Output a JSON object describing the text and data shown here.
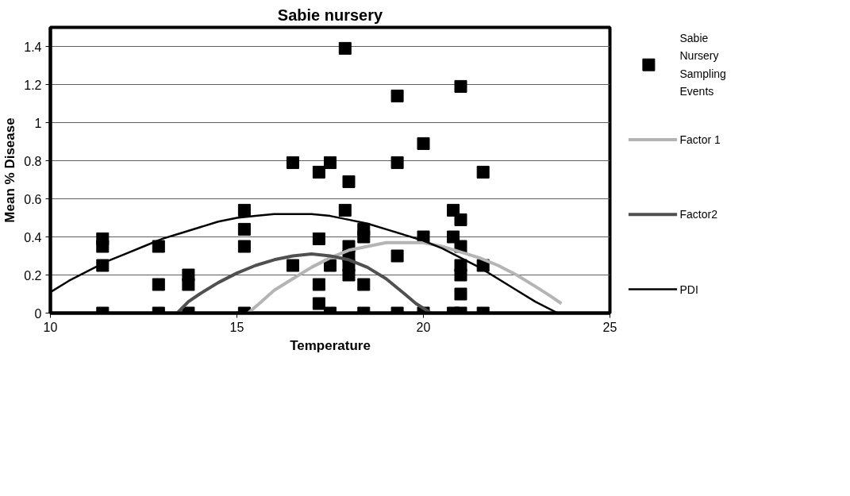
{
  "chart_data": {
    "type": "scatter",
    "title": "Sabie nursery",
    "xlabel": "Temperature",
    "ylabel": "Mean % Disease",
    "xlim": [
      10,
      25
    ],
    "ylim": [
      0,
      1.5
    ],
    "xticks": [
      10,
      15,
      20,
      25
    ],
    "yticks": [
      0,
      0.2,
      0.4,
      0.6,
      0.8,
      1,
      1.2,
      1.4
    ],
    "grid": "y",
    "legend": "right",
    "series": [
      {
        "name": "Sabie Nursery Sampling Events",
        "marker": "square",
        "color": "#000000",
        "x": [
          11.4,
          11.4,
          11.4,
          11.4,
          12.9,
          12.9,
          12.9,
          13.7,
          13.7,
          13.7,
          15.2,
          15.2,
          15.2,
          15.2,
          16.5,
          16.5,
          17.2,
          17.2,
          17.2,
          17.2,
          17.5,
          17.5,
          17.5,
          17.9,
          17.9,
          18.0,
          18.0,
          18.0,
          18.0,
          18.0,
          18.4,
          18.4,
          18.4,
          18.4,
          19.3,
          19.3,
          19.3,
          19.3,
          20.0,
          20.0,
          20.0,
          20.8,
          20.8,
          20.8,
          21.0,
          21.0,
          21.0,
          21.0,
          21.0,
          21.0,
          21.0,
          21.6,
          21.6,
          21.6
        ],
        "values": [
          0.39,
          0.35,
          0.25,
          0,
          0.35,
          0.15,
          0,
          0.2,
          0.15,
          0,
          0.54,
          0.44,
          0.35,
          0,
          0.79,
          0.25,
          0.74,
          0.39,
          0.15,
          0.05,
          0.79,
          0.25,
          0,
          1.39,
          0.54,
          0.69,
          0.35,
          0.3,
          0.25,
          0.2,
          0.44,
          0.4,
          0.15,
          0,
          1.14,
          0.79,
          0.3,
          0,
          0.89,
          0.4,
          0,
          0.54,
          0.4,
          0,
          1.19,
          0.49,
          0.35,
          0.25,
          0.2,
          0.1,
          0,
          0.74,
          0.25,
          0
        ]
      },
      {
        "name": "Factor 1",
        "type": "line",
        "marker": "none",
        "color": "#b4b4b4",
        "x": [
          15.3,
          15.6,
          16,
          16.5,
          17,
          17.5,
          18,
          18.5,
          19,
          19.5,
          20,
          20.5,
          21,
          21.5,
          22,
          22.5,
          23,
          23.4,
          23.7
        ],
        "values": [
          0,
          0.05,
          0.12,
          0.18,
          0.24,
          0.29,
          0.33,
          0.35,
          0.37,
          0.37,
          0.37,
          0.35,
          0.32,
          0.29,
          0.25,
          0.2,
          0.14,
          0.09,
          0.05
        ]
      },
      {
        "name": "Factor2",
        "type": "line",
        "marker": "none",
        "color": "#505050",
        "x": [
          13.4,
          13.7,
          14,
          14.5,
          15,
          15.5,
          16,
          16.5,
          17,
          17.5,
          18,
          18.5,
          19,
          19.5,
          19.8,
          20.2
        ],
        "values": [
          0,
          0.06,
          0.1,
          0.16,
          0.21,
          0.25,
          0.28,
          0.3,
          0.31,
          0.3,
          0.28,
          0.24,
          0.18,
          0.1,
          0.05,
          0
        ]
      },
      {
        "name": "PDI",
        "type": "line",
        "marker": "none",
        "color": "#000000",
        "x": [
          10,
          10.5,
          11,
          11.5,
          12,
          12.5,
          13,
          13.5,
          14,
          14.5,
          15,
          15.5,
          16,
          16.5,
          17,
          17.5,
          18,
          18.5,
          19,
          19.5,
          20,
          20.5,
          21,
          21.5,
          22,
          22.5,
          23,
          23.6
        ],
        "values": [
          0.11,
          0.17,
          0.22,
          0.27,
          0.31,
          0.35,
          0.39,
          0.42,
          0.45,
          0.48,
          0.5,
          0.51,
          0.52,
          0.52,
          0.52,
          0.51,
          0.49,
          0.47,
          0.44,
          0.41,
          0.38,
          0.34,
          0.29,
          0.24,
          0.18,
          0.12,
          0.06,
          0
        ]
      }
    ]
  }
}
